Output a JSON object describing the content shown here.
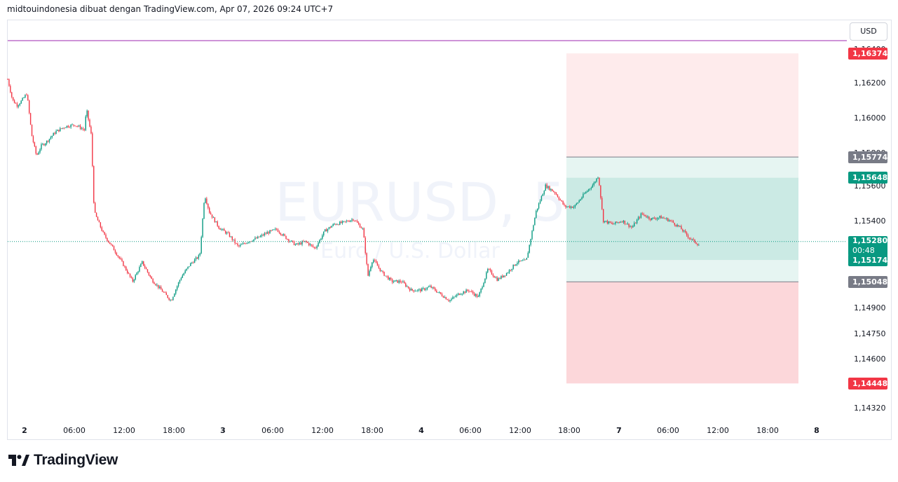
{
  "header": {
    "text": "midtouindonesia dibuat dengan TradingView.com, Apr 07, 2026 09:24 UTC+7"
  },
  "currency_button": "USD",
  "watermark": {
    "symbol": "EURUSD, 5",
    "description": "Euro / U.S. Dollar"
  },
  "brand": {
    "name": "TradingView"
  },
  "colors": {
    "up": "#089981",
    "down": "#f23645",
    "target_zone": "#089981",
    "stop_zone": "#f23645",
    "entry_level": "#787b86",
    "purple_line": "#9c27b0"
  },
  "chart_data": {
    "type": "candlestick",
    "symbol": "EURUSD",
    "interval": "5",
    "x_tick_labels": [
      "2",
      "06:00",
      "12:00",
      "18:00",
      "3",
      "06:00",
      "12:00",
      "18:00",
      "4",
      "06:00",
      "12:00",
      "18:00",
      "7",
      "06:00",
      "12:00",
      "18:00",
      "8"
    ],
    "y_tick_labels": [
      "1,16400",
      "1,16200",
      "1,16000",
      "1,15800",
      "1,15600",
      "1,15400",
      "1,14900",
      "1,14750",
      "1,14600",
      "1,14445",
      "1,14320"
    ],
    "price_labels": {
      "target": "1,16374",
      "stop_box_top": "1,15774",
      "take_profit_box_top": "1,15648",
      "current": "1,15280",
      "countdown": "00:48",
      "take_profit_box_bottom": "1,15174",
      "stop_box_bottom": "1,15048",
      "stop": "1,14448"
    },
    "price_path": [
      [
        0,
        1.1622
      ],
      [
        0.5,
        1.161
      ],
      [
        1,
        1.1607
      ],
      [
        1.5,
        1.161
      ],
      [
        2,
        1.1614
      ],
      [
        2.5,
        1.159
      ],
      [
        3,
        1.1578
      ],
      [
        3.5,
        1.1584
      ],
      [
        4,
        1.1586
      ],
      [
        5,
        1.1592
      ],
      [
        6,
        1.1595
      ],
      [
        7,
        1.1596
      ],
      [
        8,
        1.1593
      ],
      [
        8.2,
        1.1605
      ],
      [
        8.7,
        1.159
      ],
      [
        9,
        1.1545
      ],
      [
        10,
        1.1532
      ],
      [
        11,
        1.1524
      ],
      [
        12,
        1.1515
      ],
      [
        13,
        1.1505
      ],
      [
        14,
        1.1516
      ],
      [
        15,
        1.1506
      ],
      [
        16,
        1.15
      ],
      [
        17,
        1.1494
      ],
      [
        18,
        1.1507
      ],
      [
        19,
        1.1515
      ],
      [
        20,
        1.152
      ],
      [
        20.5,
        1.1555
      ],
      [
        21,
        1.1545
      ],
      [
        22,
        1.1536
      ],
      [
        23,
        1.1532
      ],
      [
        24,
        1.1525
      ],
      [
        25,
        1.1528
      ],
      [
        26,
        1.153
      ],
      [
        27,
        1.1533
      ],
      [
        28,
        1.1535
      ],
      [
        29,
        1.153
      ],
      [
        30,
        1.1526
      ],
      [
        31,
        1.1528
      ],
      [
        32,
        1.1524
      ],
      [
        33,
        1.1534
      ],
      [
        34,
        1.1538
      ],
      [
        35,
        1.1539
      ],
      [
        36,
        1.1541
      ],
      [
        37,
        1.1535
      ],
      [
        37.5,
        1.1508
      ],
      [
        38,
        1.1518
      ],
      [
        39,
        1.151
      ],
      [
        40,
        1.1505
      ],
      [
        41,
        1.1505
      ],
      [
        42,
        1.15
      ],
      [
        43,
        1.15
      ],
      [
        44,
        1.1502
      ],
      [
        45,
        1.1498
      ],
      [
        46,
        1.1494
      ],
      [
        47,
        1.1498
      ],
      [
        48,
        1.15
      ],
      [
        49,
        1.1496
      ],
      [
        50,
        1.1512
      ],
      [
        51,
        1.1506
      ],
      [
        52,
        1.151
      ],
      [
        53,
        1.1516
      ],
      [
        54,
        1.1517
      ],
      [
        55,
        1.1545
      ],
      [
        56,
        1.156
      ],
      [
        57,
        1.1556
      ],
      [
        58,
        1.1548
      ],
      [
        59,
        1.1548
      ],
      [
        60,
        1.1555
      ],
      [
        61,
        1.1561
      ],
      [
        61.5,
        1.1566
      ],
      [
        62,
        1.154
      ],
      [
        63,
        1.1538
      ],
      [
        64,
        1.154
      ],
      [
        65,
        1.1536
      ],
      [
        66,
        1.1544
      ],
      [
        67,
        1.1541
      ],
      [
        68,
        1.1542
      ],
      [
        69,
        1.154
      ],
      [
        70,
        1.1536
      ],
      [
        71,
        1.153
      ],
      [
        72,
        1.1526
      ]
    ],
    "horizontal_lines": {
      "purple": 1.1645,
      "current": 1.1528
    },
    "position_tool": {
      "target": 1.16374,
      "take_profit_top": 1.15648,
      "take_profit_bottom": 1.15174,
      "stop_top": 1.15774,
      "stop_bottom": 1.15048,
      "stop": 1.14448
    }
  }
}
